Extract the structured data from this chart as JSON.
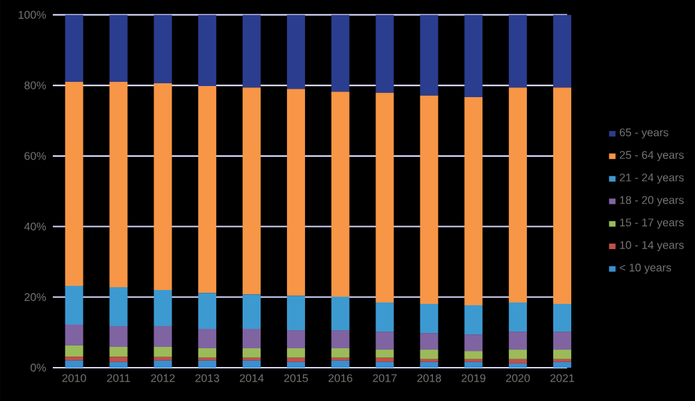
{
  "chart_data": {
    "type": "bar",
    "stacked": true,
    "categories": [
      "2010",
      "2011",
      "2012",
      "2013",
      "2014",
      "2015",
      "2016",
      "2017",
      "2018",
      "2019",
      "2020",
      "2021"
    ],
    "series": [
      {
        "name": "< 10 years",
        "color": "#3a8fd0",
        "values": [
          2.0,
          1.6,
          2.0,
          2.0,
          2.0,
          1.6,
          2.0,
          1.6,
          1.6,
          1.6,
          1.2,
          1.6
        ]
      },
      {
        "name": "10 - 14 years",
        "color": "#c0504d",
        "values": [
          1.1,
          1.5,
          1.0,
          0.8,
          0.8,
          1.2,
          0.8,
          1.2,
          0.8,
          0.8,
          1.2,
          0.8
        ]
      },
      {
        "name": "15 - 17 years",
        "color": "#9bbb59",
        "values": [
          3.2,
          2.8,
          2.9,
          2.7,
          2.7,
          2.7,
          2.7,
          2.3,
          2.7,
          2.3,
          2.7,
          2.7
        ]
      },
      {
        "name": "18 - 20 years",
        "color": "#8064a2",
        "values": [
          5.9,
          5.9,
          5.9,
          5.5,
          5.5,
          5.1,
          5.1,
          5.1,
          4.7,
          4.7,
          5.1,
          5.1
        ]
      },
      {
        "name": "21 - 24 years",
        "color": "#3d9ad0",
        "values": [
          11.0,
          11.0,
          10.2,
          10.2,
          9.8,
          9.8,
          9.5,
          8.3,
          8.3,
          8.3,
          8.3,
          7.9
        ]
      },
      {
        "name": "25 - 64 years",
        "color": "#f79646",
        "values": [
          57.8,
          58.2,
          58.6,
          58.6,
          58.6,
          58.6,
          58.1,
          59.4,
          59.0,
          59.0,
          60.9,
          61.3
        ]
      },
      {
        "name": "65 - years",
        "color": "#2b3d8f",
        "values": [
          19.0,
          19.0,
          19.4,
          20.2,
          20.6,
          21.0,
          21.8,
          22.1,
          22.9,
          23.3,
          20.6,
          20.6
        ]
      }
    ],
    "ylim": [
      0,
      100
    ],
    "yticks": [
      {
        "value": 0,
        "label": "0%"
      },
      {
        "value": 20,
        "label": "20%"
      },
      {
        "value": 40,
        "label": "40%"
      },
      {
        "value": 60,
        "label": "60%"
      },
      {
        "value": 80,
        "label": "80%"
      },
      {
        "value": 100,
        "label": "100%"
      }
    ],
    "grid": "y",
    "legend": "right"
  }
}
